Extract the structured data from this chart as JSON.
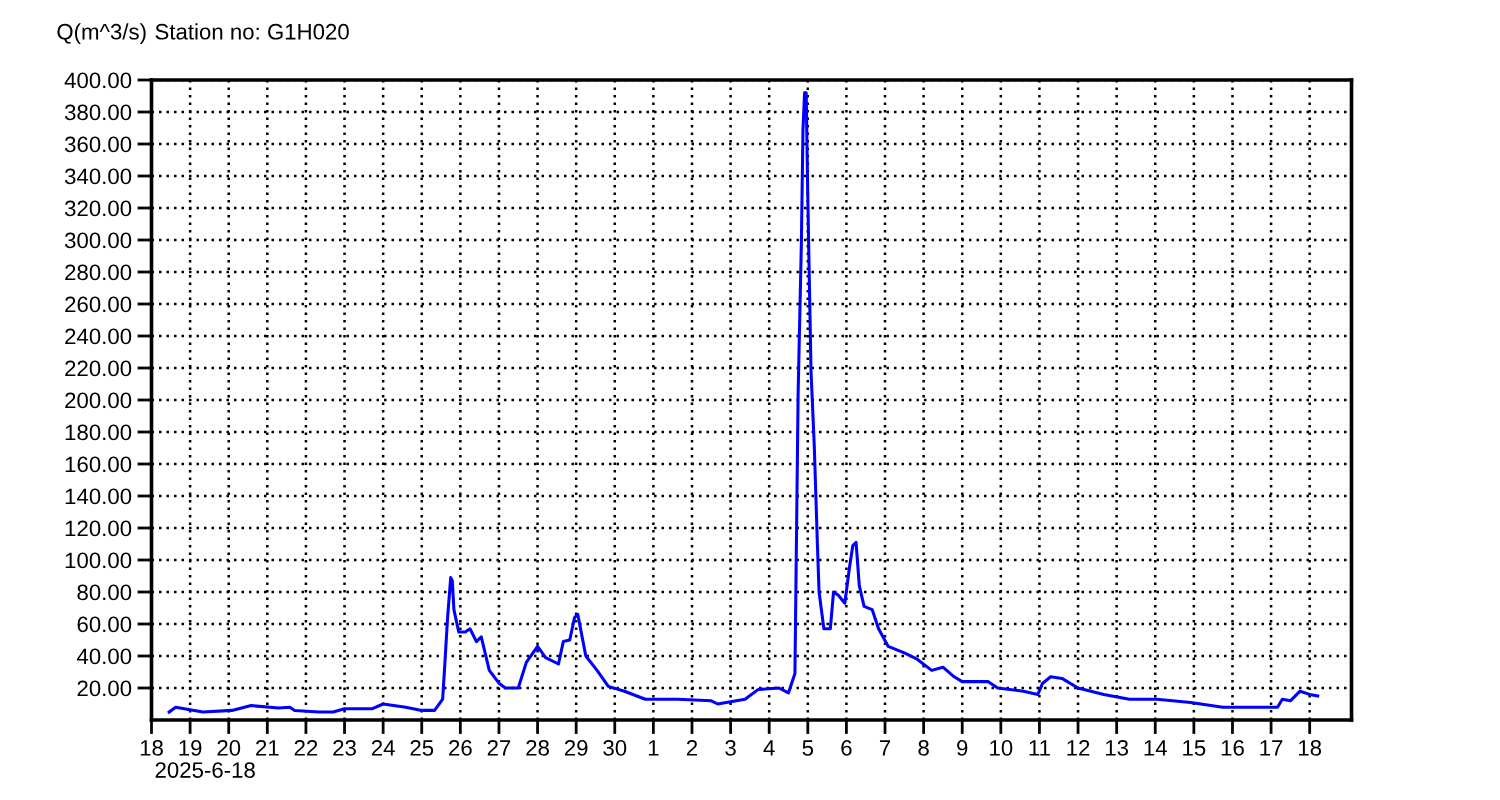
{
  "chart_data": {
    "type": "line",
    "title": "Station no: G1H020",
    "ylabel": "Q(m^3/s)",
    "annotations": [
      "2025-6-18"
    ],
    "x": [
      "2025-06-18T11:00",
      "2025-06-18T15:00",
      "2025-06-19T08:00",
      "2025-06-20T02:00",
      "2025-06-20T14:00",
      "2025-06-21T07:00",
      "2025-06-21T14:00",
      "2025-06-21T17:00",
      "2025-06-22T08:00",
      "2025-06-22T17:00",
      "2025-06-23T00:00",
      "2025-06-23T17:00",
      "2025-06-24T00:00",
      "2025-06-24T14:00",
      "2025-06-25T00:00",
      "2025-06-25T08:00",
      "2025-06-25T13:00",
      "2025-06-25T14:00",
      "2025-06-25T16:00",
      "2025-06-25T18:00",
      "2025-06-25T19:00",
      "2025-06-25T20:00",
      "2025-06-25T23:00",
      "2025-06-26T03:00",
      "2025-06-26T06:00",
      "2025-06-26T10:00",
      "2025-06-26T13:00",
      "2025-06-26T18:00",
      "2025-06-27T00:00",
      "2025-06-27T04:00",
      "2025-06-27T12:00",
      "2025-06-27T17:00",
      "2025-06-28T00:00",
      "2025-06-28T05:00",
      "2025-06-28T13:00",
      "2025-06-28T16:00",
      "2025-06-28T20:00",
      "2025-06-28T23:00",
      "2025-06-29T01:00",
      "2025-06-29T06:00",
      "2025-06-29T13:00",
      "2025-06-29T20:00",
      "2025-06-30T06:00",
      "2025-06-30T19:00",
      "2025-07-01T15:00",
      "2025-07-02T12:00",
      "2025-07-02T16:00",
      "2025-07-03T09:00",
      "2025-07-03T17:00",
      "2025-07-04T06:00",
      "2025-07-04T12:00",
      "2025-07-04T16:00",
      "2025-07-04T18:00",
      "2025-07-04T20:00",
      "2025-07-04T21:00",
      "2025-07-04T22:00",
      "2025-07-04T23:00",
      "2025-07-05T00:00",
      "2025-07-05T01:00",
      "2025-07-05T02:00",
      "2025-07-05T04:00",
      "2025-07-05T06:00",
      "2025-07-05T07:00",
      "2025-07-05T10:00",
      "2025-07-05T14:00",
      "2025-07-05T16:00",
      "2025-07-05T19:00",
      "2025-07-05T23:00",
      "2025-07-06T02:00",
      "2025-07-06T04:00",
      "2025-07-06T06:00",
      "2025-07-06T08:00",
      "2025-07-06T11:00",
      "2025-07-06T16:00",
      "2025-07-06T20:00",
      "2025-07-07T02:00",
      "2025-07-07T12:00",
      "2025-07-07T20:00",
      "2025-07-08T05:00",
      "2025-07-08T12:00",
      "2025-07-08T19:00",
      "2025-07-09T00:00",
      "2025-07-09T16:00",
      "2025-07-09T22:00",
      "2025-07-10T14:00",
      "2025-07-10T23:00",
      "2025-07-11T02:00",
      "2025-07-11T07:00",
      "2025-07-11T14:00",
      "2025-07-12T00:00",
      "2025-07-12T16:00",
      "2025-07-13T08:00",
      "2025-07-14T01:00",
      "2025-07-14T22:00",
      "2025-07-15T18:00",
      "2025-07-17T04:00",
      "2025-07-17T07:00",
      "2025-07-17T12:00",
      "2025-07-17T18:00",
      "2025-07-18T00:00",
      "2025-07-18T05:00"
    ],
    "series": [
      {
        "color": "#0000ff",
        "values": [
          5,
          8,
          5,
          6,
          9,
          7.5,
          8,
          6,
          5,
          5,
          7,
          7,
          10,
          8,
          6,
          6,
          13,
          29,
          63,
          89,
          87,
          69,
          55,
          55,
          57,
          49,
          52,
          31,
          23,
          20,
          20,
          36,
          46,
          39,
          35,
          49,
          50,
          64,
          66,
          40,
          31,
          21,
          18,
          13,
          13,
          12,
          10,
          13,
          19,
          20,
          17,
          29,
          205,
          298,
          369,
          392,
          392,
          327,
          272,
          218,
          172,
          109,
          80,
          57,
          57,
          80,
          78,
          73,
          96,
          109,
          111,
          84,
          71,
          69,
          57,
          46,
          42,
          38,
          31,
          33,
          27,
          24,
          24,
          20,
          18,
          16,
          23,
          27,
          26,
          20,
          16,
          13,
          13,
          11,
          8,
          8,
          13,
          12,
          18,
          16,
          15
        ]
      }
    ],
    "xlim": [
      "2025-06-18",
      "2025-07-19T02:00"
    ],
    "xticks": [
      {
        "value": "2025-06-18",
        "label": "18"
      },
      {
        "value": "2025-06-19",
        "label": "19"
      },
      {
        "value": "2025-06-20",
        "label": "20"
      },
      {
        "value": "2025-06-21",
        "label": "21"
      },
      {
        "value": "2025-06-22",
        "label": "22"
      },
      {
        "value": "2025-06-23",
        "label": "23"
      },
      {
        "value": "2025-06-24",
        "label": "24"
      },
      {
        "value": "2025-06-25",
        "label": "25"
      },
      {
        "value": "2025-06-26",
        "label": "26"
      },
      {
        "value": "2025-06-27",
        "label": "27"
      },
      {
        "value": "2025-06-28",
        "label": "28"
      },
      {
        "value": "2025-06-29",
        "label": "29"
      },
      {
        "value": "2025-06-30",
        "label": "30"
      },
      {
        "value": "2025-07-01",
        "label": "1"
      },
      {
        "value": "2025-07-02",
        "label": "2"
      },
      {
        "value": "2025-07-03",
        "label": "3"
      },
      {
        "value": "2025-07-04",
        "label": "4"
      },
      {
        "value": "2025-07-05",
        "label": "5"
      },
      {
        "value": "2025-07-06",
        "label": "6"
      },
      {
        "value": "2025-07-07",
        "label": "7"
      },
      {
        "value": "2025-07-08",
        "label": "8"
      },
      {
        "value": "2025-07-09",
        "label": "9"
      },
      {
        "value": "2025-07-10",
        "label": "10"
      },
      {
        "value": "2025-07-11",
        "label": "11"
      },
      {
        "value": "2025-07-12",
        "label": "12"
      },
      {
        "value": "2025-07-13",
        "label": "13"
      },
      {
        "value": "2025-07-14",
        "label": "14"
      },
      {
        "value": "2025-07-15",
        "label": "15"
      },
      {
        "value": "2025-07-16",
        "label": "16"
      },
      {
        "value": "2025-07-17",
        "label": "17"
      },
      {
        "value": "2025-07-18",
        "label": "18"
      }
    ],
    "ylim": [
      0,
      400
    ],
    "yticks": [
      {
        "value": 20,
        "label": "20.00"
      },
      {
        "value": 40,
        "label": "40.00"
      },
      {
        "value": 60,
        "label": "60.00"
      },
      {
        "value": 80,
        "label": "80.00"
      },
      {
        "value": 100,
        "label": "100.00"
      },
      {
        "value": 120,
        "label": "120.00"
      },
      {
        "value": 140,
        "label": "140.00"
      },
      {
        "value": 160,
        "label": "160.00"
      },
      {
        "value": 180,
        "label": "180.00"
      },
      {
        "value": 200,
        "label": "200.00"
      },
      {
        "value": 220,
        "label": "220.00"
      },
      {
        "value": 240,
        "label": "240.00"
      },
      {
        "value": 260,
        "label": "260.00"
      },
      {
        "value": 280,
        "label": "280.00"
      },
      {
        "value": 300,
        "label": "300.00"
      },
      {
        "value": 320,
        "label": "320.00"
      },
      {
        "value": 340,
        "label": "340.00"
      },
      {
        "value": 360,
        "label": "360.00"
      },
      {
        "value": 380,
        "label": "380.00"
      },
      {
        "value": 400,
        "label": "400.00"
      }
    ],
    "grid": true,
    "line_style": "solid",
    "marker": "none"
  }
}
